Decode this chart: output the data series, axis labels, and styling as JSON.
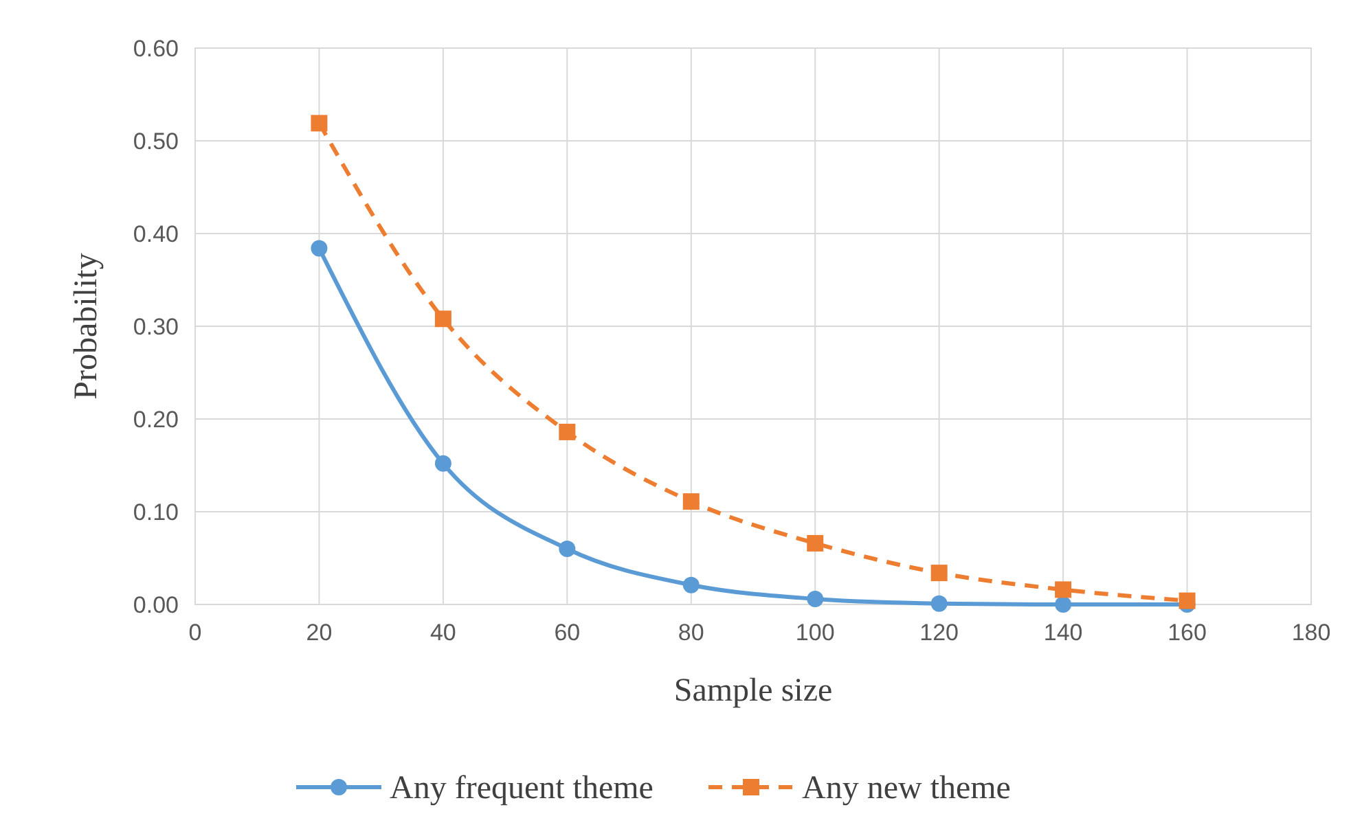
{
  "chart_data": {
    "type": "line",
    "xlabel": "Sample size",
    "ylabel": "Probability",
    "x": [
      20,
      40,
      60,
      80,
      100,
      120,
      140,
      160
    ],
    "xlim": [
      0,
      180
    ],
    "xticks": [
      0,
      20,
      40,
      60,
      80,
      100,
      120,
      140,
      160,
      180
    ],
    "ylim": [
      0,
      0.6
    ],
    "yticks": [
      {
        "value": 0,
        "label": "0.00"
      },
      {
        "value": 0.1,
        "label": "0.10"
      },
      {
        "value": 0.2,
        "label": "0.20"
      },
      {
        "value": 0.3,
        "label": "0.30"
      },
      {
        "value": 0.4,
        "label": "0.40"
      },
      {
        "value": 0.5,
        "label": "0.50"
      },
      {
        "value": 0.6,
        "label": "0.60"
      }
    ],
    "grid": true,
    "legend": "bottom",
    "series": [
      {
        "name": "Any frequent theme",
        "color": "#5b9bd5",
        "marker": "circle",
        "line_style": "solid",
        "values": [
          0.384,
          0.152,
          0.06,
          0.021,
          0.006,
          0.001,
          0.0,
          0.0
        ]
      },
      {
        "name": "Any new theme",
        "color": "#ed7d31",
        "marker": "square",
        "line_style": "dashed",
        "values": [
          0.519,
          0.308,
          0.186,
          0.111,
          0.066,
          0.034,
          0.016,
          0.004
        ]
      }
    ]
  }
}
